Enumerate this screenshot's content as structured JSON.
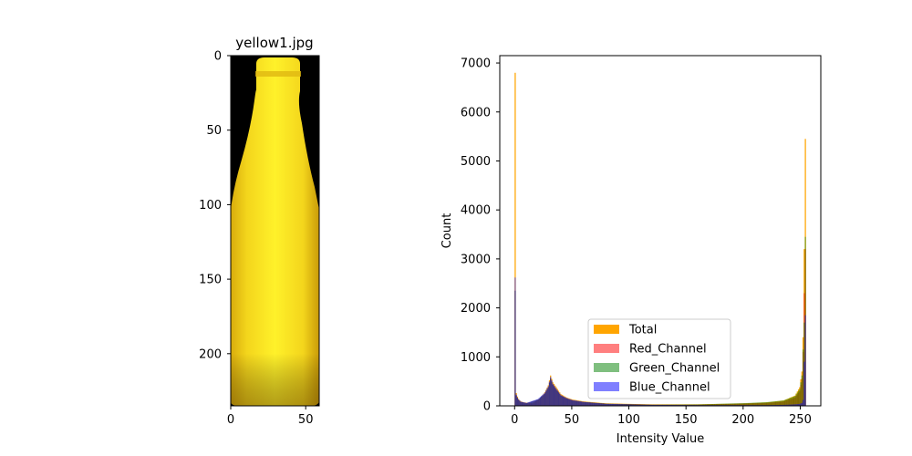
{
  "chart_data": [
    {
      "type": "image",
      "title": "yellow1.jpg",
      "xlim": [
        0,
        59
      ],
      "ylim": [
        235,
        0
      ],
      "xticks": [
        0,
        50
      ],
      "yticks": [
        0,
        50,
        100,
        150,
        200
      ],
      "xtick_labels": [
        "0",
        "50"
      ],
      "ytick_labels": [
        "0",
        "50",
        "100",
        "150",
        "200"
      ],
      "colors": {
        "background": "#000000",
        "bottle_bright": "#fff12a",
        "bottle_mid": "#f2d21a",
        "bottle_edge": "#b58a07"
      }
    },
    {
      "type": "histogram",
      "xlabel": "Intensity Value",
      "ylabel": "Count",
      "xlim": [
        -13,
        268
      ],
      "ylim": [
        0,
        7150
      ],
      "xticks": [
        0,
        50,
        100,
        150,
        200,
        250
      ],
      "yticks": [
        0,
        1000,
        2000,
        3000,
        4000,
        5000,
        6000,
        7000
      ],
      "xtick_labels": [
        "0",
        "50",
        "100",
        "150",
        "200",
        "250"
      ],
      "ytick_labels": [
        "0",
        "1000",
        "2000",
        "3000",
        "4000",
        "5000",
        "6000",
        "7000"
      ],
      "legend_position": "lower-center",
      "bin_width": 1,
      "series": [
        {
          "name": "Total",
          "color": "#ffa500",
          "opacity": 1.0,
          "peaks": [
            [
              0,
              6800
            ],
            [
              1,
              260
            ],
            [
              2,
              190
            ],
            [
              3,
              140
            ],
            [
              4,
              110
            ],
            [
              5,
              90
            ],
            [
              8,
              70
            ],
            [
              15,
              50
            ],
            [
              22,
              150
            ],
            [
              26,
              280
            ],
            [
              29,
              420
            ],
            [
              31,
              620
            ],
            [
              33,
              480
            ],
            [
              36,
              380
            ],
            [
              40,
              240
            ],
            [
              45,
              170
            ],
            [
              50,
              130
            ],
            [
              60,
              90
            ],
            [
              80,
              50
            ],
            [
              120,
              30
            ],
            [
              160,
              30
            ],
            [
              200,
              50
            ],
            [
              220,
              70
            ],
            [
              235,
              110
            ],
            [
              245,
              210
            ],
            [
              249,
              380
            ],
            [
              251,
              700
            ],
            [
              252,
              1400
            ],
            [
              253,
              3200
            ],
            [
              254,
              5450
            ],
            [
              255,
              0
            ]
          ]
        },
        {
          "name": "Red_Channel",
          "color": "#ff0000",
          "opacity": 0.5,
          "peaks": [
            [
              0,
              2350
            ],
            [
              1,
              210
            ],
            [
              2,
              160
            ],
            [
              3,
              120
            ],
            [
              5,
              80
            ],
            [
              10,
              55
            ],
            [
              20,
              130
            ],
            [
              26,
              250
            ],
            [
              29,
              380
            ],
            [
              31,
              560
            ],
            [
              33,
              430
            ],
            [
              36,
              330
            ],
            [
              40,
              210
            ],
            [
              45,
              150
            ],
            [
              50,
              110
            ],
            [
              60,
              80
            ],
            [
              80,
              45
            ],
            [
              120,
              25
            ],
            [
              160,
              25
            ],
            [
              200,
              45
            ],
            [
              220,
              60
            ],
            [
              235,
              90
            ],
            [
              245,
              170
            ],
            [
              249,
              300
            ],
            [
              251,
              560
            ],
            [
              252,
              1100
            ],
            [
              253,
              2300
            ],
            [
              254,
              3200
            ],
            [
              255,
              0
            ]
          ]
        },
        {
          "name": "Green_Channel",
          "color": "#008000",
          "opacity": 0.5,
          "peaks": [
            [
              0,
              2350
            ],
            [
              1,
              210
            ],
            [
              2,
              160
            ],
            [
              3,
              120
            ],
            [
              5,
              80
            ],
            [
              10,
              55
            ],
            [
              20,
              130
            ],
            [
              26,
              250
            ],
            [
              29,
              380
            ],
            [
              31,
              560
            ],
            [
              33,
              430
            ],
            [
              36,
              330
            ],
            [
              40,
              210
            ],
            [
              45,
              150
            ],
            [
              50,
              110
            ],
            [
              60,
              80
            ],
            [
              80,
              45
            ],
            [
              120,
              25
            ],
            [
              160,
              30
            ],
            [
              200,
              55
            ],
            [
              220,
              75
            ],
            [
              235,
              110
            ],
            [
              245,
              200
            ],
            [
              249,
              340
            ],
            [
              251,
              620
            ],
            [
              252,
              1150
            ],
            [
              253,
              1700
            ],
            [
              254,
              3450
            ],
            [
              255,
              0
            ]
          ]
        },
        {
          "name": "Blue_Channel",
          "color": "#0000ff",
          "opacity": 0.5,
          "peaks": [
            [
              0,
              2620
            ],
            [
              1,
              230
            ],
            [
              2,
              170
            ],
            [
              3,
              130
            ],
            [
              5,
              85
            ],
            [
              10,
              60
            ],
            [
              20,
              140
            ],
            [
              26,
              270
            ],
            [
              29,
              400
            ],
            [
              31,
              590
            ],
            [
              33,
              450
            ],
            [
              36,
              350
            ],
            [
              40,
              220
            ],
            [
              45,
              160
            ],
            [
              50,
              120
            ],
            [
              60,
              80
            ],
            [
              80,
              40
            ],
            [
              120,
              20
            ],
            [
              160,
              15
            ],
            [
              200,
              15
            ],
            [
              220,
              15
            ],
            [
              235,
              20
            ],
            [
              245,
              30
            ],
            [
              249,
              40
            ],
            [
              251,
              60
            ],
            [
              252,
              120
            ],
            [
              253,
              900
            ],
            [
              254,
              1850
            ],
            [
              255,
              0
            ]
          ]
        }
      ]
    }
  ]
}
